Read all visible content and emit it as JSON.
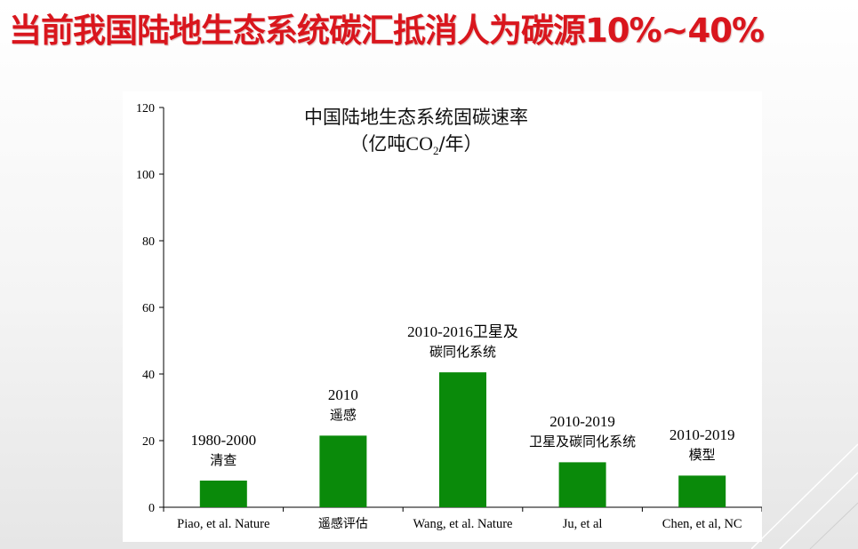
{
  "slide": {
    "title": "当前我国陆地生态系统碳汇抵消人为碳源10%~40%"
  },
  "colors": {
    "title": "#d9161d",
    "bar": "#0a8a0a",
    "axis": "#000000"
  },
  "chart_data": {
    "type": "bar",
    "title": "中国陆地生态系统固碳速率",
    "subtitle_prefix": "（亿吨",
    "subtitle_chem": "CO",
    "subtitle_sub": "2",
    "subtitle_suffix": "/年）",
    "xlabel": "",
    "ylabel": "",
    "ylim": [
      0,
      120
    ],
    "yticks": [
      0,
      20,
      40,
      60,
      80,
      100,
      120
    ],
    "grid": false,
    "legend": "none",
    "categories": [
      "Piao, et al. Nature",
      "遥感评估",
      "Wang, et al. Nature",
      "Ju, et al",
      "Chen, et al, NC"
    ],
    "values": [
      8,
      21.5,
      40.5,
      13.5,
      9.5
    ],
    "annotations": [
      {
        "year": "1980-2000",
        "desc": "清查"
      },
      {
        "year": "2010",
        "desc": "遥感"
      },
      {
        "year": "2010-2016卫星及",
        "desc": "碳同化系统"
      },
      {
        "year": "2010-2019",
        "desc": "卫星及碳同化系统"
      },
      {
        "year": "2010-2019",
        "desc": "模型"
      }
    ]
  }
}
